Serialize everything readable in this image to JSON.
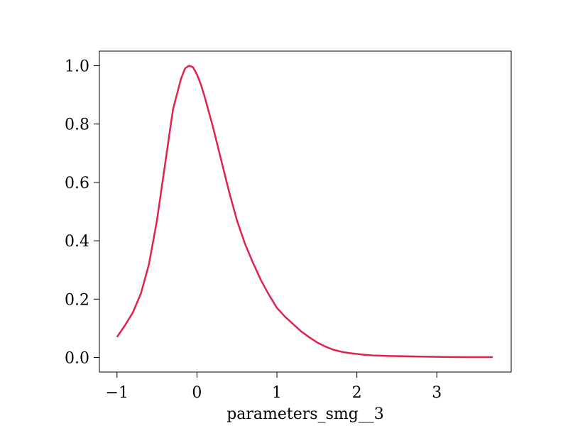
{
  "chart_data": {
    "type": "line",
    "title": "",
    "xlabel": "parameters_smg__3",
    "ylabel": "",
    "xlim": [
      -1.22,
      3.93
    ],
    "ylim": [
      -0.05,
      1.05
    ],
    "xticks": [
      -1,
      0,
      1,
      2,
      3
    ],
    "xtick_labels": [
      "−1",
      "0",
      "1",
      "2",
      "3"
    ],
    "yticks": [
      0.0,
      0.2,
      0.4,
      0.6,
      0.8,
      1.0
    ],
    "ytick_labels": [
      "0.0",
      "0.2",
      "0.4",
      "0.6",
      "0.8",
      "1.0"
    ],
    "grid": false,
    "series": [
      {
        "color": "#e0234e",
        "x": [
          -1.0,
          -0.9,
          -0.8,
          -0.7,
          -0.6,
          -0.5,
          -0.4,
          -0.3,
          -0.2,
          -0.15,
          -0.1,
          -0.05,
          0.0,
          0.05,
          0.1,
          0.2,
          0.3,
          0.4,
          0.5,
          0.6,
          0.7,
          0.8,
          0.9,
          1.0,
          1.1,
          1.2,
          1.3,
          1.4,
          1.5,
          1.6,
          1.7,
          1.8,
          1.9,
          2.0,
          2.1,
          2.2,
          2.4,
          2.6,
          2.8,
          3.0,
          3.2,
          3.4,
          3.7
        ],
        "y": [
          0.07,
          0.11,
          0.155,
          0.22,
          0.32,
          0.47,
          0.66,
          0.85,
          0.955,
          0.99,
          1.0,
          0.995,
          0.97,
          0.935,
          0.89,
          0.79,
          0.68,
          0.57,
          0.47,
          0.39,
          0.325,
          0.265,
          0.215,
          0.17,
          0.14,
          0.115,
          0.09,
          0.07,
          0.052,
          0.038,
          0.027,
          0.02,
          0.015,
          0.012,
          0.009,
          0.007,
          0.005,
          0.004,
          0.003,
          0.002,
          0.0015,
          0.001,
          0.001
        ]
      }
    ]
  }
}
